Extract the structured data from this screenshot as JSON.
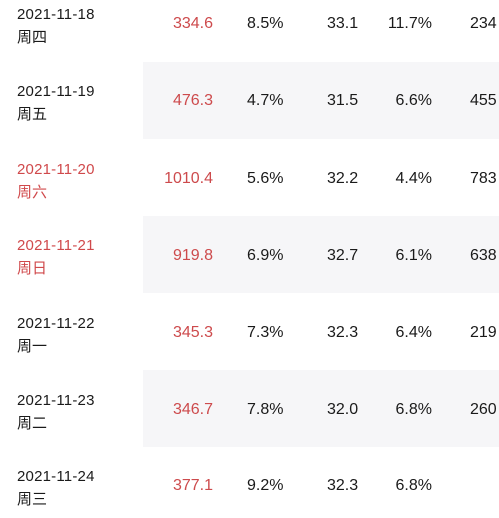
{
  "rows": [
    {
      "date": "2021-11-18",
      "weekday": "周四",
      "v1": "334.6",
      "v2": "8.5%",
      "v3": "33.1",
      "v4": "11.7%",
      "v5": "234"
    },
    {
      "date": "2021-11-19",
      "weekday": "周五",
      "v1": "476.3",
      "v2": "4.7%",
      "v3": "31.5",
      "v4": "6.6%",
      "v5": "455"
    },
    {
      "date": "2021-11-20",
      "weekday": "周六",
      "v1": "1010.4",
      "v2": "5.6%",
      "v3": "32.2",
      "v4": "4.4%",
      "v5": "783"
    },
    {
      "date": "2021-11-21",
      "weekday": "周日",
      "v1": "919.8",
      "v2": "6.9%",
      "v3": "32.7",
      "v4": "6.1%",
      "v5": "638"
    },
    {
      "date": "2021-11-22",
      "weekday": "周一",
      "v1": "345.3",
      "v2": "7.3%",
      "v3": "32.3",
      "v4": "6.4%",
      "v5": "219"
    },
    {
      "date": "2021-11-23",
      "weekday": "周二",
      "v1": "346.7",
      "v2": "7.8%",
      "v3": "32.0",
      "v4": "6.8%",
      "v5": "260"
    },
    {
      "date": "2021-11-24",
      "weekday": "周三",
      "v1": "377.1",
      "v2": "9.2%",
      "v3": "32.3",
      "v4": "6.8%",
      "v5": ""
    }
  ],
  "colors": {
    "weekend_text": "#d0494b",
    "highlight_value": "#cd4a4c",
    "normal_text": "#1a1a1a",
    "row_shade": "#f6f6f8"
  }
}
